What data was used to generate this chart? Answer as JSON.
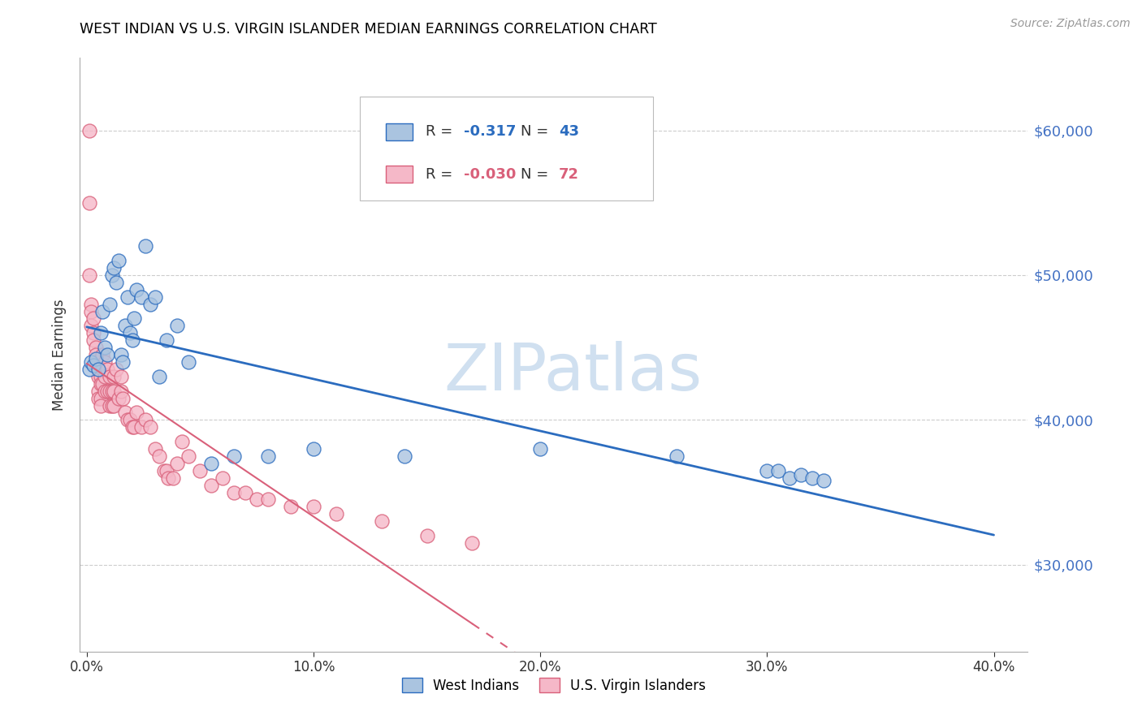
{
  "title": "WEST INDIAN VS U.S. VIRGIN ISLANDER MEDIAN EARNINGS CORRELATION CHART",
  "source": "Source: ZipAtlas.com",
  "ylabel_left": "Median Earnings",
  "xlabel_ticks": [
    "0.0%",
    "10.0%",
    "20.0%",
    "30.0%",
    "40.0%"
  ],
  "xlabel_values": [
    0.0,
    0.1,
    0.2,
    0.3,
    0.4
  ],
  "ytick_values": [
    30000,
    40000,
    50000,
    60000
  ],
  "ytick_labels": [
    "$30,000",
    "$40,000",
    "$50,000",
    "$60,000"
  ],
  "ylim": [
    24000,
    65000
  ],
  "xlim": [
    -0.003,
    0.415
  ],
  "blue_R": "-0.317",
  "blue_N": "43",
  "pink_R": "-0.030",
  "pink_N": "72",
  "blue_scatter_color": "#aac4e0",
  "pink_scatter_color": "#f5b8c8",
  "blue_line_color": "#2b6cbf",
  "pink_line_color": "#d9607a",
  "axis_label_color": "#4472c4",
  "watermark_color": "#d0e0f0",
  "legend_label_blue": "West Indians",
  "legend_label_pink": "U.S. Virgin Islanders",
  "blue_x": [
    0.001,
    0.002,
    0.003,
    0.004,
    0.005,
    0.006,
    0.007,
    0.008,
    0.009,
    0.01,
    0.011,
    0.012,
    0.013,
    0.014,
    0.015,
    0.016,
    0.017,
    0.018,
    0.019,
    0.02,
    0.021,
    0.022,
    0.024,
    0.026,
    0.028,
    0.03,
    0.032,
    0.035,
    0.04,
    0.045,
    0.055,
    0.065,
    0.08,
    0.1,
    0.14,
    0.2,
    0.26,
    0.3,
    0.305,
    0.31,
    0.315,
    0.32,
    0.325
  ],
  "blue_y": [
    43500,
    44000,
    43800,
    44200,
    43500,
    46000,
    47500,
    45000,
    44500,
    48000,
    50000,
    50500,
    49500,
    51000,
    44500,
    44000,
    46500,
    48500,
    46000,
    45500,
    47000,
    49000,
    48500,
    52000,
    48000,
    48500,
    43000,
    45500,
    46500,
    44000,
    37000,
    37500,
    37500,
    38000,
    37500,
    38000,
    37500,
    36500,
    36500,
    36000,
    36200,
    36000,
    35800
  ],
  "pink_x": [
    0.001,
    0.001,
    0.001,
    0.002,
    0.002,
    0.002,
    0.003,
    0.003,
    0.003,
    0.004,
    0.004,
    0.004,
    0.005,
    0.005,
    0.005,
    0.005,
    0.006,
    0.006,
    0.006,
    0.006,
    0.007,
    0.007,
    0.007,
    0.008,
    0.008,
    0.008,
    0.009,
    0.009,
    0.01,
    0.01,
    0.01,
    0.011,
    0.011,
    0.012,
    0.012,
    0.012,
    0.013,
    0.014,
    0.015,
    0.015,
    0.016,
    0.017,
    0.018,
    0.019,
    0.02,
    0.021,
    0.022,
    0.024,
    0.026,
    0.028,
    0.03,
    0.032,
    0.034,
    0.035,
    0.036,
    0.038,
    0.04,
    0.042,
    0.045,
    0.05,
    0.055,
    0.06,
    0.065,
    0.07,
    0.075,
    0.08,
    0.09,
    0.1,
    0.11,
    0.13,
    0.15,
    0.17
  ],
  "pink_y": [
    60000,
    55000,
    50000,
    48000,
    47500,
    46500,
    47000,
    46000,
    45500,
    45000,
    44500,
    44000,
    43500,
    43000,
    42000,
    41500,
    43000,
    42500,
    41500,
    41000,
    44500,
    43500,
    42500,
    44000,
    43000,
    42000,
    43500,
    42000,
    43000,
    42000,
    41000,
    42000,
    41000,
    43000,
    42000,
    41000,
    43500,
    41500,
    43000,
    42000,
    41500,
    40500,
    40000,
    40000,
    39500,
    39500,
    40500,
    39500,
    40000,
    39500,
    38000,
    37500,
    36500,
    36500,
    36000,
    36000,
    37000,
    38500,
    37500,
    36500,
    35500,
    36000,
    35000,
    35000,
    34500,
    34500,
    34000,
    34000,
    33500,
    33000,
    32000,
    31500
  ]
}
